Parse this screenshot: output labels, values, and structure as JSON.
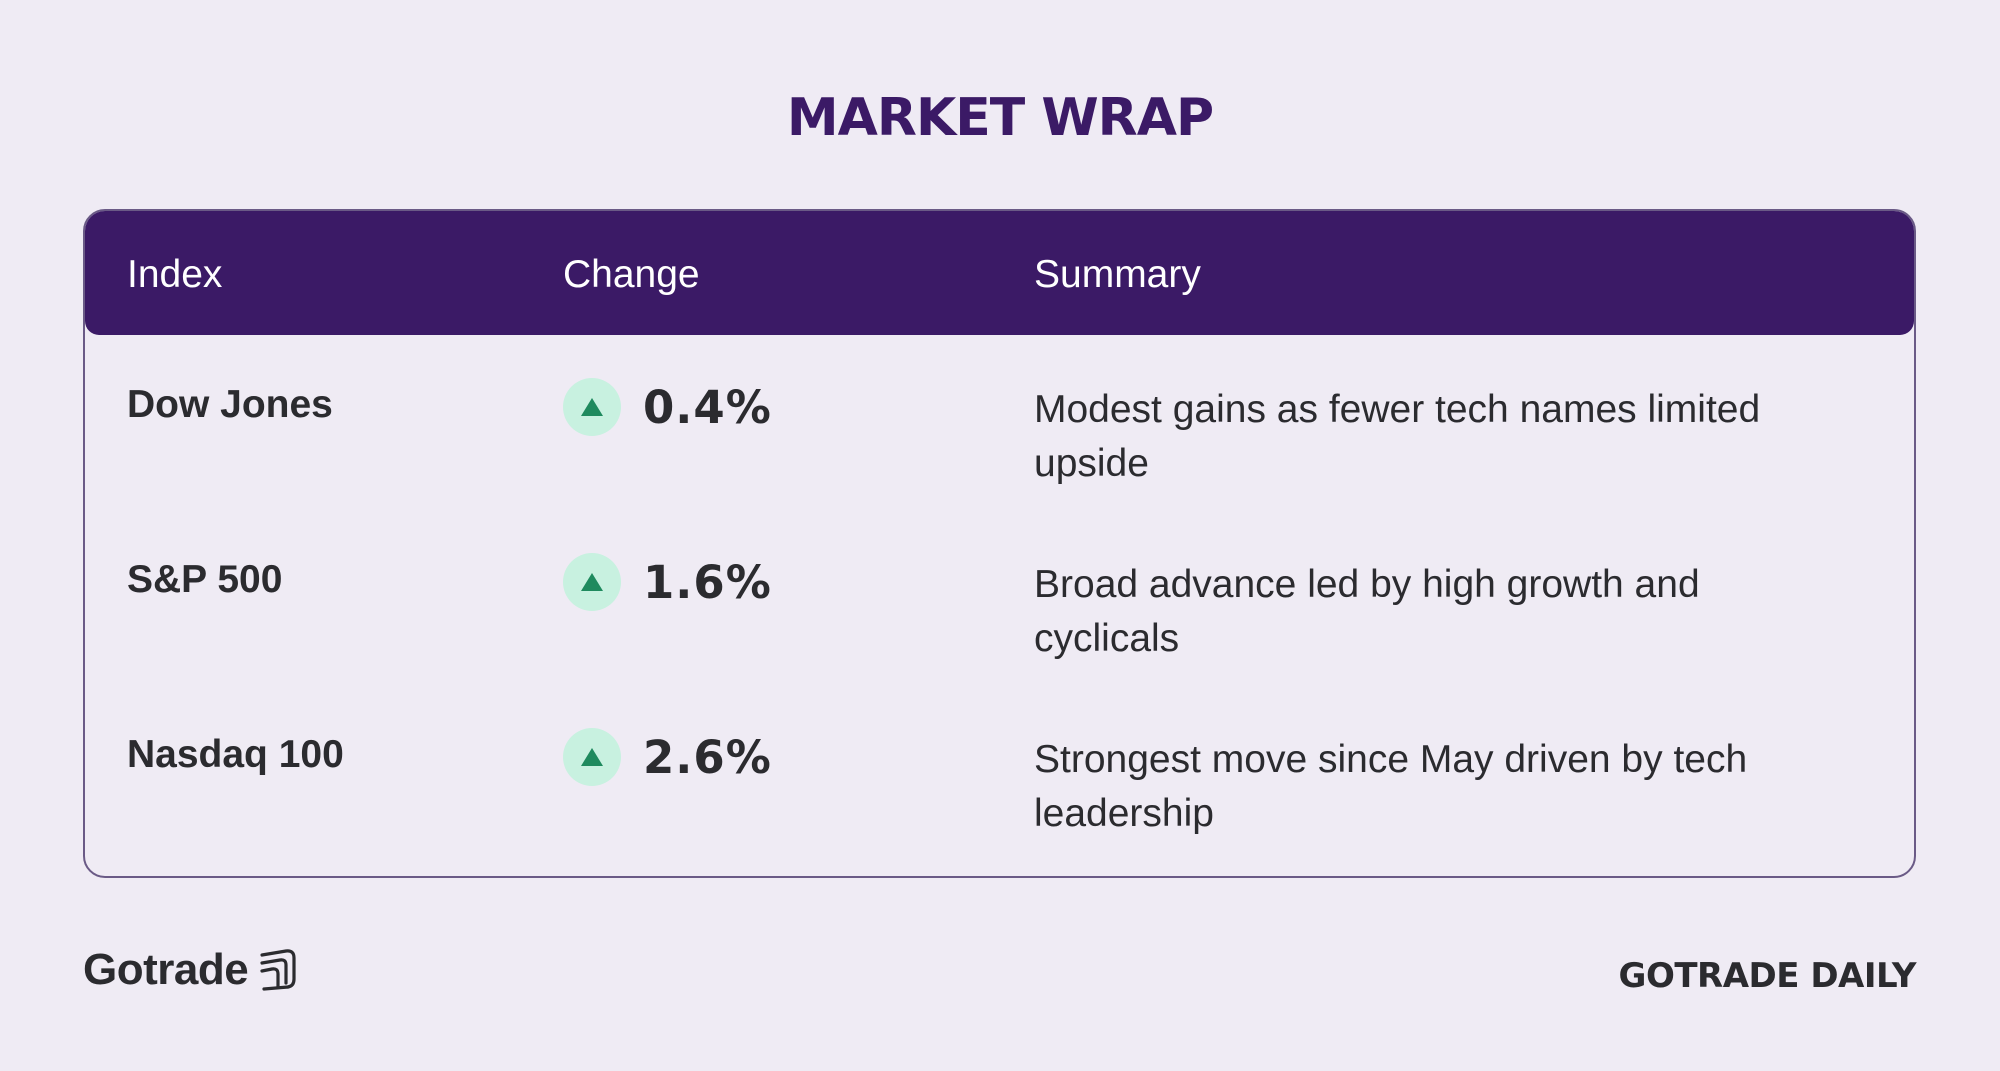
{
  "title": "MARKET WRAP",
  "table": {
    "headers": {
      "index": "Index",
      "change": "Change",
      "summary": "Summary"
    },
    "rows": [
      {
        "index": "Dow Jones",
        "change": "0.4%",
        "direction_icon": "arrow-up-icon",
        "summary": "Modest gains as fewer tech names limited upside"
      },
      {
        "index": "S&P 500",
        "change": "1.6%",
        "direction_icon": "arrow-up-icon",
        "summary": "Broad advance led by high growth and cyclicals"
      },
      {
        "index": "Nasdaq 100",
        "change": "2.6%",
        "direction_icon": "arrow-up-icon",
        "summary": "Strongest move since May driven by tech leadership"
      }
    ]
  },
  "footer": {
    "brand_name": "Gotrade",
    "brand_icon": "gotrade-logo-icon",
    "tagline": "GOTRADE DAILY"
  },
  "colors": {
    "background": "#efebf4",
    "header": "#3b1a66",
    "up_badge": "#c8f1e0",
    "up_arrow": "#1f8a5e"
  }
}
